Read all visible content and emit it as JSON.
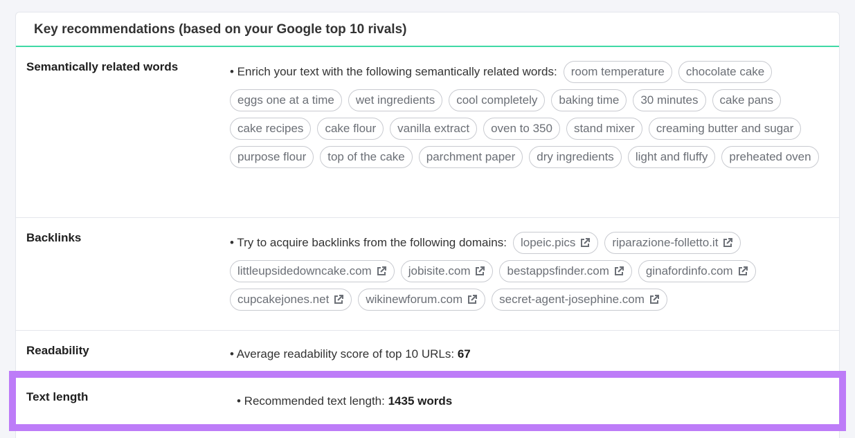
{
  "card": {
    "title": "Key recommendations (based on your Google top 10 rivals)"
  },
  "colors": {
    "accent_line": "#3fd9a5",
    "highlight": "#bd7cf8"
  },
  "semantic": {
    "label": "Semantically related words",
    "intro": "• Enrich your text with the following semantically related words:",
    "words": [
      "room temperature",
      "chocolate cake",
      "eggs one at a time",
      "wet ingredients",
      "cool completely",
      "baking time",
      "30 minutes",
      "cake pans",
      "cake recipes",
      "cake flour",
      "vanilla extract",
      "oven to 350",
      "stand mixer",
      "creaming butter and sugar",
      "purpose flour",
      "top of the cake",
      "parchment paper",
      "dry ingredients",
      "light and fluffy",
      "preheated oven"
    ]
  },
  "backlinks": {
    "label": "Backlinks",
    "intro": "• Try to acquire backlinks from the following domains:",
    "icon": "external-link-icon",
    "domains": [
      "lopeic.pics",
      "riparazione-folletto.it",
      "littleupsidedowncake.com",
      "jobisite.com",
      "bestappsfinder.com",
      "ginafordinfo.com",
      "cupcakejones.net",
      "wikinewforum.com",
      "secret-agent-josephine.com"
    ]
  },
  "readability": {
    "label": "Readability",
    "text": "• Average readability score of top 10 URLs:",
    "value": "67"
  },
  "text_length": {
    "label": "Text length",
    "text": "• Recommended text length:",
    "value": "1435 words"
  }
}
